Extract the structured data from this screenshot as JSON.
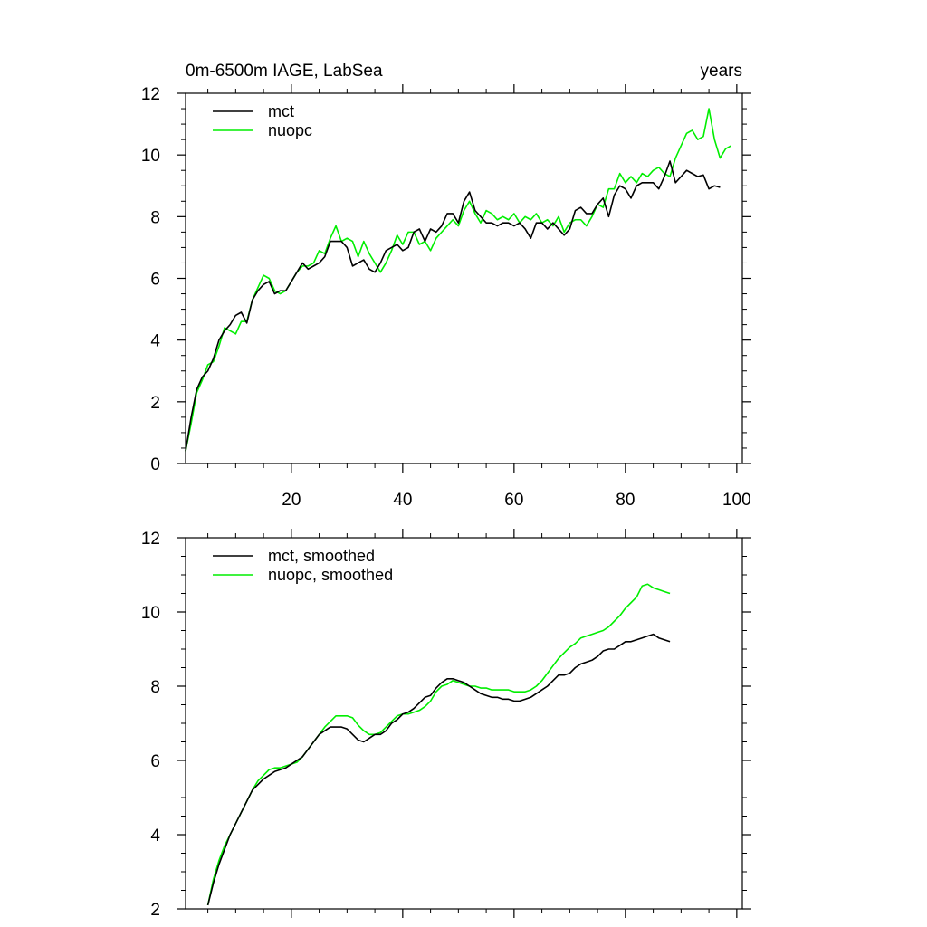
{
  "chart_data": [
    {
      "type": "line",
      "title": "0m-6500m IAGE, LabSea",
      "title_right": "years",
      "xlabel": "",
      "ylabel": "",
      "xlim": [
        1,
        101
      ],
      "ylim": [
        0,
        12
      ],
      "x_ticks": [
        20,
        40,
        60,
        80,
        100
      ],
      "x_tick_labels": [
        "20",
        "40",
        "60",
        "80",
        "100"
      ],
      "y_ticks": [
        0,
        2,
        4,
        6,
        8,
        10,
        12
      ],
      "y_tick_labels": [
        "0",
        "2",
        "4",
        "6",
        "8",
        "10",
        "12"
      ],
      "legend": "top-left",
      "x_start": 1,
      "series": [
        {
          "name": "mct",
          "color": "#000000",
          "values": [
            0.4,
            1.5,
            2.4,
            2.8,
            3.0,
            3.4,
            4.0,
            4.3,
            4.5,
            4.8,
            4.9,
            4.55,
            5.3,
            5.6,
            5.8,
            5.9,
            5.5,
            5.6,
            5.6,
            5.9,
            6.2,
            6.5,
            6.3,
            6.4,
            6.5,
            6.7,
            7.2,
            7.2,
            7.2,
            7.0,
            6.4,
            6.5,
            6.6,
            6.3,
            6.2,
            6.5,
            6.9,
            7.0,
            7.1,
            6.9,
            7.0,
            7.5,
            7.6,
            7.2,
            7.6,
            7.5,
            7.7,
            8.1,
            8.1,
            7.8,
            8.5,
            8.8,
            8.2,
            8.0,
            7.8,
            7.8,
            7.7,
            7.8,
            7.8,
            7.7,
            7.8,
            7.6,
            7.3,
            7.8,
            7.8,
            7.6,
            7.8,
            7.6,
            7.4,
            7.6,
            8.2,
            8.3,
            8.1,
            8.1,
            8.4,
            8.6,
            8.0,
            8.7,
            9.0,
            8.9,
            8.6,
            9.0,
            9.1,
            9.1,
            9.1,
            8.9,
            9.3,
            9.8,
            9.1,
            9.3,
            9.5,
            9.4,
            9.3,
            9.35,
            8.9,
            9.0,
            8.95
          ]
        },
        {
          "name": "nuopc",
          "color": "#00ee00",
          "values": [
            0.4,
            1.3,
            2.3,
            2.7,
            3.2,
            3.3,
            3.8,
            4.4,
            4.3,
            4.2,
            4.6,
            4.6,
            5.3,
            5.7,
            6.1,
            6.0,
            5.6,
            5.5,
            5.6,
            5.9,
            6.2,
            6.4,
            6.4,
            6.5,
            6.9,
            6.8,
            7.3,
            7.7,
            7.2,
            7.3,
            7.2,
            6.7,
            7.2,
            6.8,
            6.5,
            6.2,
            6.5,
            6.9,
            7.4,
            7.1,
            7.5,
            7.5,
            7.1,
            7.2,
            6.9,
            7.3,
            7.5,
            7.7,
            7.9,
            7.7,
            8.2,
            8.5,
            8.1,
            7.8,
            8.2,
            8.1,
            7.9,
            8.0,
            7.9,
            8.1,
            7.8,
            8.0,
            7.9,
            8.1,
            7.8,
            7.9,
            7.7,
            8.0,
            7.5,
            7.8,
            7.9,
            7.9,
            7.7,
            8.0,
            8.4,
            8.3,
            8.9,
            8.9,
            9.4,
            9.1,
            9.3,
            9.1,
            9.4,
            9.3,
            9.5,
            9.6,
            9.4,
            9.3,
            9.9,
            10.3,
            10.7,
            10.8,
            10.5,
            10.6,
            11.5,
            10.5,
            9.9,
            10.2,
            10.3
          ]
        }
      ]
    },
    {
      "type": "line",
      "title": "",
      "xlabel": "",
      "ylabel": "",
      "xlim": [
        1,
        101
      ],
      "ylim": [
        2,
        12
      ],
      "x_ticks": [
        20,
        40,
        60,
        80,
        100
      ],
      "y_ticks": [
        2,
        4,
        6,
        8,
        10,
        12
      ],
      "y_tick_labels": [
        "2",
        "4",
        "6",
        "8",
        "10",
        "12"
      ],
      "legend": "top-left",
      "x_start": 5,
      "series": [
        {
          "name": "mct, smoothed",
          "color": "#000000",
          "values": [
            2.1,
            2.7,
            3.2,
            3.6,
            4.0,
            4.3,
            4.6,
            4.9,
            5.2,
            5.35,
            5.5,
            5.6,
            5.7,
            5.75,
            5.8,
            5.9,
            6.0,
            6.1,
            6.3,
            6.5,
            6.7,
            6.8,
            6.9,
            6.9,
            6.9,
            6.85,
            6.7,
            6.55,
            6.5,
            6.6,
            6.7,
            6.7,
            6.8,
            7.0,
            7.1,
            7.25,
            7.3,
            7.4,
            7.55,
            7.7,
            7.75,
            7.95,
            8.1,
            8.2,
            8.2,
            8.15,
            8.1,
            8.0,
            7.9,
            7.8,
            7.75,
            7.7,
            7.7,
            7.65,
            7.65,
            7.6,
            7.6,
            7.65,
            7.7,
            7.8,
            7.9,
            8.0,
            8.15,
            8.3,
            8.3,
            8.35,
            8.5,
            8.6,
            8.65,
            8.7,
            8.8,
            8.95,
            9.0,
            9.0,
            9.1,
            9.2,
            9.2,
            9.25,
            9.3,
            9.35,
            9.4,
            9.3,
            9.25,
            9.2
          ]
        },
        {
          "name": "nuopc, smoothed",
          "color": "#00ee00",
          "values": [
            2.1,
            2.8,
            3.3,
            3.7,
            4.0,
            4.3,
            4.6,
            4.9,
            5.2,
            5.45,
            5.6,
            5.75,
            5.8,
            5.8,
            5.85,
            5.9,
            5.95,
            6.1,
            6.3,
            6.5,
            6.7,
            6.9,
            7.05,
            7.2,
            7.2,
            7.2,
            7.15,
            6.95,
            6.8,
            6.7,
            6.7,
            6.75,
            6.9,
            7.05,
            7.2,
            7.25,
            7.25,
            7.3,
            7.35,
            7.45,
            7.6,
            7.85,
            8.0,
            8.05,
            8.15,
            8.1,
            8.05,
            8.0,
            8.0,
            7.95,
            7.95,
            7.9,
            7.9,
            7.9,
            7.9,
            7.85,
            7.85,
            7.85,
            7.9,
            8.0,
            8.15,
            8.35,
            8.55,
            8.75,
            8.9,
            9.05,
            9.15,
            9.3,
            9.35,
            9.4,
            9.45,
            9.5,
            9.6,
            9.75,
            9.9,
            10.1,
            10.25,
            10.4,
            10.7,
            10.75,
            10.65,
            10.6,
            10.55,
            10.5
          ]
        }
      ]
    }
  ]
}
